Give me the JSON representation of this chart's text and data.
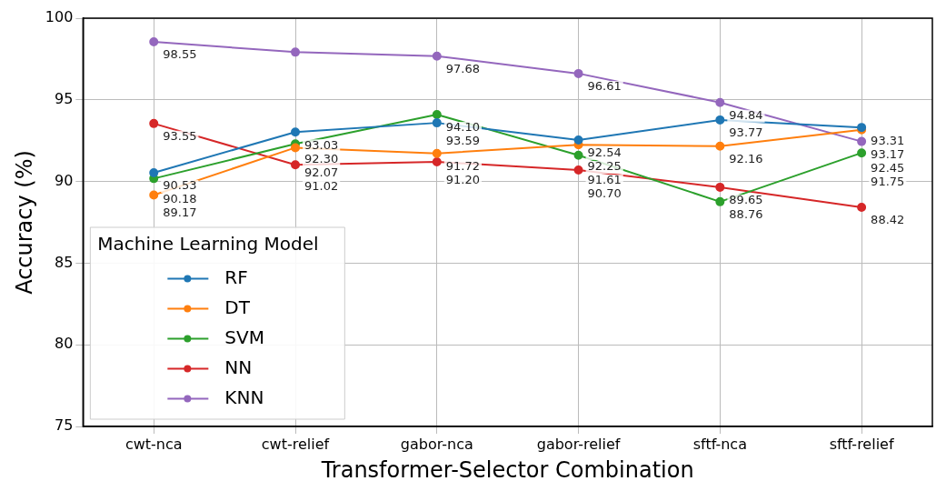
{
  "chart_data": {
    "type": "line",
    "xlabel": "Transformer-Selector Combination",
    "ylabel": "Accuracy (%)",
    "legend_title": "Machine Learning Model",
    "categories": [
      "cwt-nca",
      "cwt-relief",
      "gabor-nca",
      "gabor-relief",
      "sftf-nca",
      "sftf-relief"
    ],
    "series": [
      {
        "name": "RF",
        "color": "#1f77b4",
        "values": [
          90.53,
          93.03,
          93.59,
          92.54,
          93.77,
          93.31
        ],
        "value_labels": [
          "90.53",
          "93.03",
          "93.59",
          "92.54",
          "93.77",
          "93.31"
        ]
      },
      {
        "name": "DT",
        "color": "#ff7f0e",
        "values": [
          89.17,
          92.07,
          91.72,
          92.25,
          92.16,
          93.17
        ],
        "value_labels": [
          "89.17",
          "92.07",
          "91.72",
          "92.25",
          "92.16",
          "93.17"
        ]
      },
      {
        "name": "SVM",
        "color": "#2ca02c",
        "values": [
          90.18,
          92.3,
          94.1,
          91.61,
          88.76,
          91.75
        ],
        "value_labels": [
          "90.18",
          "92.30",
          "94.10",
          "91.61",
          "88.76",
          "91.75"
        ]
      },
      {
        "name": "NN",
        "color": "#d62728",
        "values": [
          93.55,
          91.02,
          91.2,
          90.7,
          89.65,
          88.42
        ],
        "value_labels": [
          "93.55",
          "91.02",
          "91.20",
          "90.70",
          "89.65",
          "88.42"
        ]
      },
      {
        "name": "KNN",
        "color": "#9467bd",
        "values": [
          98.55,
          97.92,
          97.68,
          96.61,
          94.84,
          92.45
        ],
        "value_labels": [
          "98.55",
          null,
          "97.68",
          "96.61",
          "94.84",
          "92.45"
        ]
      }
    ],
    "ylim": [
      75,
      100
    ],
    "yticks": [
      75,
      80,
      85,
      90,
      95,
      100
    ],
    "grid": true,
    "legend": "bottom left",
    "marker": "circle",
    "line_style": "solid"
  }
}
